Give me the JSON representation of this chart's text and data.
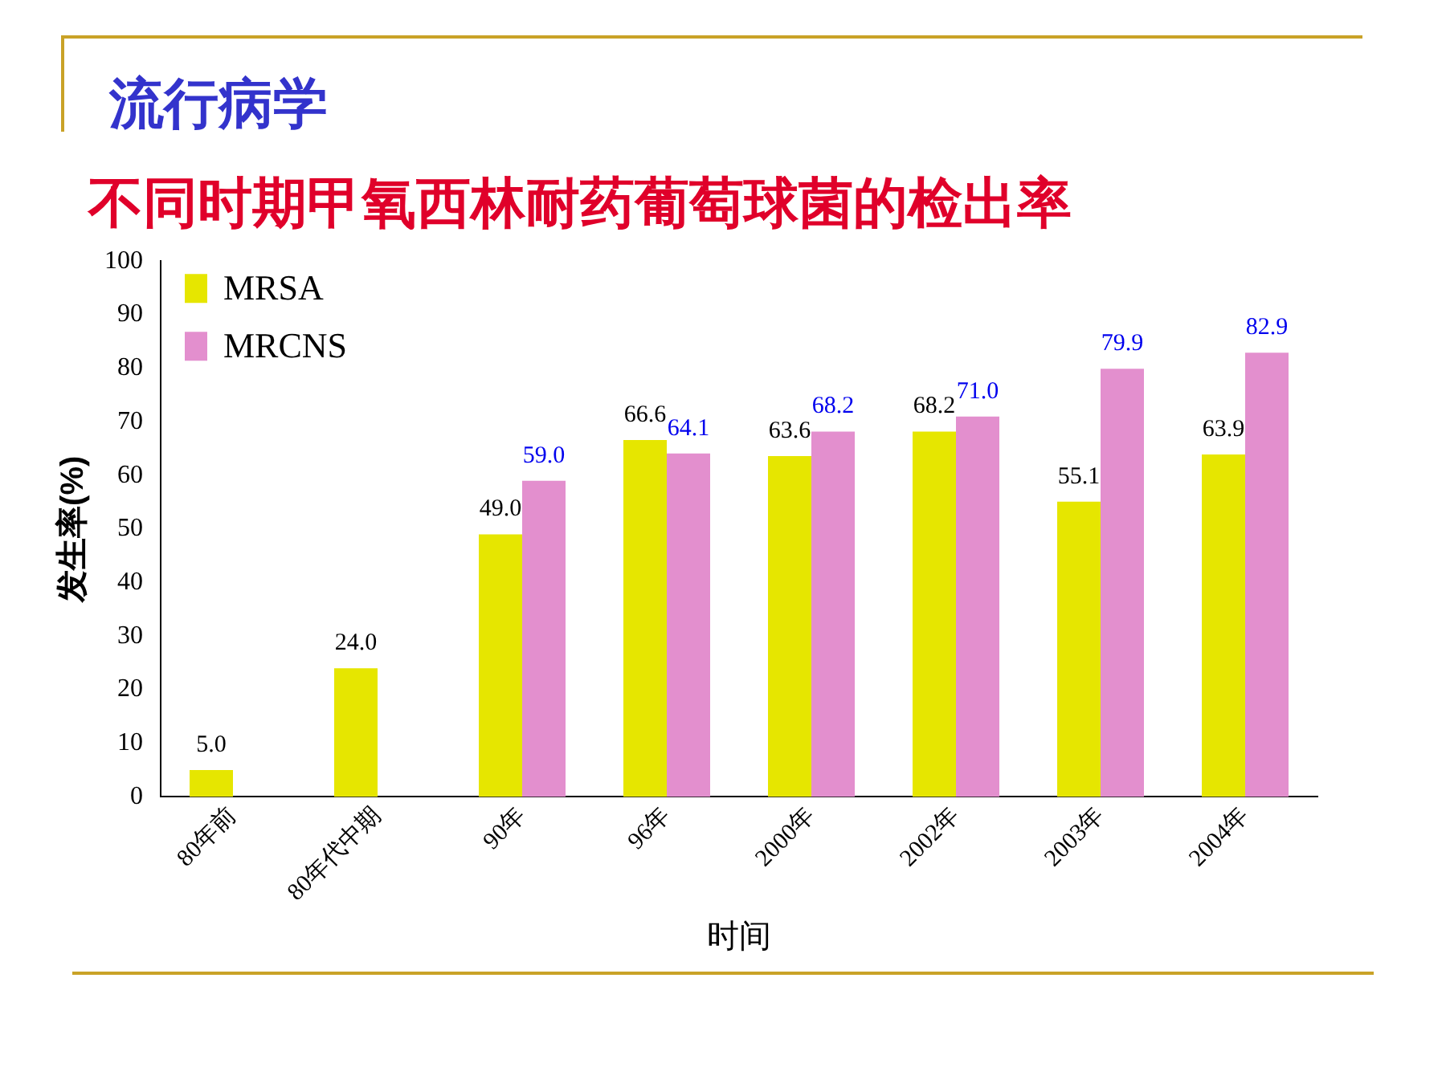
{
  "chart_data": {
    "type": "bar",
    "subtitle": "流行病学",
    "title": "不同时期甲氧西林耐药葡萄球菌的检出率",
    "xlabel": "时间",
    "ylabel": "发生率(%)",
    "categories": [
      "80年前",
      "80年代中期",
      "90年",
      "96年",
      "2000年",
      "2002年",
      "2003年",
      "2004年"
    ],
    "series": [
      {
        "name": "MRSA",
        "color": "#e6e600",
        "values": [
          5.0,
          24.0,
          49.0,
          66.6,
          63.6,
          68.2,
          55.1,
          63.9
        ],
        "value_labels": [
          "5.0",
          "24.0",
          "49.0",
          "66.6",
          "63.6",
          "68.2",
          "55.1",
          "63.9"
        ]
      },
      {
        "name": "MRCNS",
        "color": "#e38fce",
        "values": [
          null,
          null,
          59.0,
          64.1,
          68.2,
          71.0,
          79.9,
          82.9
        ],
        "value_labels": [
          null,
          null,
          "59.0",
          "64.1",
          "68.2",
          "71.0",
          "79.9",
          "82.9"
        ]
      }
    ],
    "ylim": [
      0,
      100
    ],
    "yticks": [
      0,
      10,
      20,
      30,
      40,
      50,
      60,
      70,
      80,
      90,
      100
    ],
    "grid": false,
    "legend": "top left"
  }
}
